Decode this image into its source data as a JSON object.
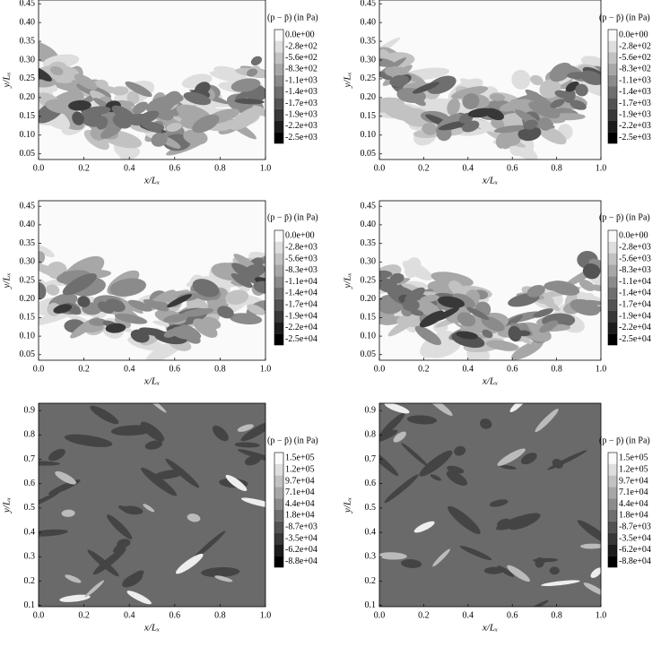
{
  "chart_data": [
    {
      "type": "contour",
      "xlabel": "x/Lₓ",
      "ylabel": "y/Lₓ",
      "xlim": [
        0,
        1
      ],
      "ylim": [
        0.035,
        0.46
      ],
      "xticks": [
        {
          "value": 0,
          "label": "0.0"
        },
        0.2,
        0.4,
        0.6,
        0.8,
        {
          "value": 1,
          "label": "1.0"
        }
      ],
      "yticks": [
        0.05,
        {
          "value": 0.1,
          "label": "0.10"
        },
        0.15,
        {
          "value": 0.2,
          "label": "0.20"
        },
        0.25,
        {
          "value": 0.3,
          "label": "0.30"
        },
        0.35,
        {
          "value": 0.4,
          "label": "0.40"
        },
        0.45
      ],
      "colorbar": {
        "title": "(p − p̄) (in Pa)",
        "levels": [
          {
            "value": 0,
            "label": "0.0e+00"
          },
          {
            "value": -280,
            "label": "-2.8e+02"
          },
          {
            "value": -560,
            "label": "-5.6e+02"
          },
          {
            "value": -830,
            "label": "-8.3e+02"
          },
          {
            "value": -1100,
            "label": "-1.1e+03"
          },
          {
            "value": -1400,
            "label": "-1.4e+03"
          },
          {
            "value": -1700,
            "label": "-1.7e+03"
          },
          {
            "value": -1900,
            "label": "-1.9e+03"
          },
          {
            "value": -2200,
            "label": "-2.2e+03"
          },
          {
            "value": -2500,
            "label": "-2.5e+03"
          }
        ]
      }
    },
    {
      "type": "contour",
      "xlabel": "x/Lₓ",
      "ylabel": "y/Lₓ",
      "xlim": [
        0,
        1
      ],
      "ylim": [
        0.035,
        0.46
      ],
      "xticks": [
        {
          "value": 0,
          "label": "0.0"
        },
        0.2,
        0.4,
        0.6,
        0.8,
        {
          "value": 1,
          "label": "1.0"
        }
      ],
      "yticks": [
        0.05,
        {
          "value": 0.1,
          "label": "0.10"
        },
        0.15,
        {
          "value": 0.2,
          "label": "0.20"
        },
        0.25,
        {
          "value": 0.3,
          "label": "0.30"
        },
        0.35,
        {
          "value": 0.4,
          "label": "0.40"
        },
        0.45
      ],
      "colorbar": {
        "title": "(p − p̄) (in Pa)",
        "levels": [
          {
            "value": 0,
            "label": "0.0e+00"
          },
          {
            "value": -280,
            "label": "-2.8e+02"
          },
          {
            "value": -560,
            "label": "-5.6e+02"
          },
          {
            "value": -830,
            "label": "-8.3e+02"
          },
          {
            "value": -1100,
            "label": "-1.1e+03"
          },
          {
            "value": -1400,
            "label": "-1.4e+03"
          },
          {
            "value": -1700,
            "label": "-1.7e+03"
          },
          {
            "value": -1900,
            "label": "-1.9e+03"
          },
          {
            "value": -2200,
            "label": "-2.2e+03"
          },
          {
            "value": -2500,
            "label": "-2.5e+03"
          }
        ]
      }
    },
    {
      "type": "contour",
      "xlabel": "x/Lₓ",
      "ylabel": "y/Lₓ",
      "xlim": [
        0,
        1
      ],
      "ylim": [
        0.035,
        0.465
      ],
      "xticks": [
        {
          "value": 0,
          "label": "0.0"
        },
        0.2,
        0.4,
        0.6,
        0.8,
        {
          "value": 1,
          "label": "1.0"
        }
      ],
      "yticks": [
        0.05,
        {
          "value": 0.1,
          "label": "0.10"
        },
        0.15,
        {
          "value": 0.2,
          "label": "0.20"
        },
        0.25,
        {
          "value": 0.3,
          "label": "0.30"
        },
        0.35,
        {
          "value": 0.4,
          "label": "0.40"
        },
        0.45
      ],
      "colorbar": {
        "title": "(p − p̄) (in Pa)",
        "levels": [
          {
            "value": 0,
            "label": "0.0e+00"
          },
          {
            "value": -2800,
            "label": "-2.8e+03"
          },
          {
            "value": -5600,
            "label": "-5.6e+03"
          },
          {
            "value": -8300,
            "label": "-8.3e+03"
          },
          {
            "value": -11000,
            "label": "-1.1e+04"
          },
          {
            "value": -14000,
            "label": "-1.4e+04"
          },
          {
            "value": -17000,
            "label": "-1.7e+04"
          },
          {
            "value": -19000,
            "label": "-1.9e+04"
          },
          {
            "value": -22000,
            "label": "-2.2e+04"
          },
          {
            "value": -25000,
            "label": "-2.5e+04"
          }
        ]
      }
    },
    {
      "type": "contour",
      "xlabel": "x/Lₓ",
      "ylabel": "y/Lₓ",
      "xlim": [
        0,
        1
      ],
      "ylim": [
        0.035,
        0.465
      ],
      "xticks": [
        {
          "value": 0,
          "label": "0.0"
        },
        0.2,
        0.4,
        0.6,
        0.8,
        {
          "value": 1,
          "label": "1.0"
        }
      ],
      "yticks": [
        0.05,
        {
          "value": 0.1,
          "label": "0.10"
        },
        0.15,
        {
          "value": 0.2,
          "label": "0.20"
        },
        0.25,
        {
          "value": 0.3,
          "label": "0.30"
        },
        0.35,
        {
          "value": 0.4,
          "label": "0.40"
        },
        0.45
      ],
      "colorbar": {
        "title": "(p − p̄) (in Pa)",
        "levels": [
          {
            "value": 0,
            "label": "0.0e+00"
          },
          {
            "value": -2800,
            "label": "-2.8e+03"
          },
          {
            "value": -5600,
            "label": "-5.6e+03"
          },
          {
            "value": -8300,
            "label": "-8.3e+03"
          },
          {
            "value": -11000,
            "label": "-1.1e+04"
          },
          {
            "value": -14000,
            "label": "-1.4e+04"
          },
          {
            "value": -17000,
            "label": "-1.7e+04"
          },
          {
            "value": -19000,
            "label": "-1.9e+04"
          },
          {
            "value": -22000,
            "label": "-2.2e+04"
          },
          {
            "value": -25000,
            "label": "-2.5e+04"
          }
        ]
      }
    },
    {
      "type": "contour",
      "xlabel": "x/Lₓ",
      "ylabel": "y/Lₓ",
      "xlim": [
        0,
        1
      ],
      "ylim": [
        0.095,
        0.93
      ],
      "xticks": [
        {
          "value": 0,
          "label": "0.0"
        },
        0.2,
        0.4,
        0.6,
        0.8,
        {
          "value": 1,
          "label": "1.0"
        }
      ],
      "yticks": [
        0.1,
        0.2,
        0.3,
        0.4,
        0.5,
        0.6,
        0.7,
        0.8,
        0.9
      ],
      "colorbar": {
        "title": "(p − p̄) (in Pa)",
        "levels": [
          {
            "value": 150000,
            "label": "1.5e+05"
          },
          {
            "value": 120000,
            "label": "1.2e+05"
          },
          {
            "value": 97000,
            "label": "9.7e+04"
          },
          {
            "value": 71000,
            "label": "7.1e+04"
          },
          {
            "value": 44000,
            "label": "4.4e+04"
          },
          {
            "value": 18000,
            "label": "1.8e+04"
          },
          {
            "value": -8700,
            "label": "-8.7e+03"
          },
          {
            "value": -35000,
            "label": "-3.5e+04"
          },
          {
            "value": -62000,
            "label": "-6.2e+04"
          },
          {
            "value": -88000,
            "label": "-8.8e+04"
          }
        ]
      }
    },
    {
      "type": "contour",
      "xlabel": "x/Lₓ",
      "ylabel": "y/Lₓ",
      "xlim": [
        0,
        1
      ],
      "ylim": [
        0.095,
        0.93
      ],
      "xticks": [
        {
          "value": 0,
          "label": "0.0"
        },
        0.2,
        0.4,
        0.6,
        0.8,
        {
          "value": 1,
          "label": "1.0"
        }
      ],
      "yticks": [
        0.1,
        0.2,
        0.3,
        0.4,
        0.5,
        0.6,
        0.7,
        0.8,
        0.9
      ],
      "colorbar": {
        "title": "(p − p̄) (in Pa)",
        "levels": [
          {
            "value": 150000,
            "label": "1.5e+05"
          },
          {
            "value": 120000,
            "label": "1.2e+05"
          },
          {
            "value": 97000,
            "label": "9.7e+04"
          },
          {
            "value": 71000,
            "label": "7.1e+04"
          },
          {
            "value": 44000,
            "label": "4.4e+04"
          },
          {
            "value": 18000,
            "label": "1.8e+04"
          },
          {
            "value": -8700,
            "label": "-8.7e+03"
          },
          {
            "value": -35000,
            "label": "-3.5e+04"
          },
          {
            "value": -62000,
            "label": "-6.2e+04"
          },
          {
            "value": -88000,
            "label": "-8.8e+04"
          }
        ]
      }
    }
  ]
}
